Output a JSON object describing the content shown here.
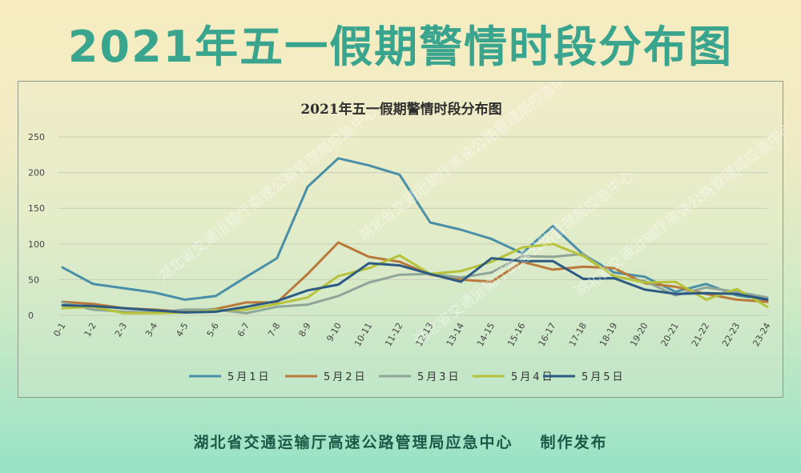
{
  "page": {
    "title": "2021年五一假期警情时段分布图",
    "footer_org": "湖北省交通运输厅高速公路管理局应急中心",
    "footer_action": "制作发布",
    "watermark": "湖北省交通运输厅高速公路管理局应急中心"
  },
  "colors": {
    "title": "#3aa58e",
    "footer": "#1c5a48"
  },
  "chart_data": {
    "type": "line",
    "title": "2021年五一假期警情时段分布图",
    "xlabel": "",
    "ylabel": "",
    "ylim": [
      0,
      250
    ],
    "yticks": [
      0,
      50,
      100,
      150,
      200,
      250
    ],
    "grid": true,
    "legend_position": "bottom",
    "categories": [
      "0-1",
      "1-2",
      "2-3",
      "3-4",
      "4-5",
      "5-6",
      "6-7",
      "7-8",
      "8-9",
      "9-10",
      "10-11",
      "11-12",
      "12-13",
      "13-14",
      "14-15",
      "15-16",
      "16-17",
      "17-18",
      "18-19",
      "19-20",
      "20-21",
      "21-22",
      "22-23",
      "23-24"
    ],
    "series": [
      {
        "name": "5月1日",
        "color": "#4a8fa8",
        "values": [
          67,
          44,
          38,
          32,
          22,
          27,
          54,
          80,
          180,
          220,
          210,
          197,
          130,
          120,
          107,
          87,
          125,
          85,
          60,
          54,
          33,
          44,
          28,
          22
        ]
      },
      {
        "name": "5月2日",
        "color": "#b9793a",
        "values": [
          19,
          16,
          10,
          8,
          5,
          9,
          18,
          18,
          58,
          102,
          82,
          75,
          57,
          50,
          47,
          75,
          64,
          68,
          66,
          45,
          40,
          30,
          22,
          19
        ]
      },
      {
        "name": "5月3日",
        "color": "#8fa598",
        "values": [
          18,
          8,
          5,
          4,
          8,
          8,
          3,
          12,
          15,
          27,
          46,
          57,
          58,
          53,
          60,
          83,
          82,
          86,
          54,
          48,
          28,
          39,
          33,
          25
        ]
      },
      {
        "name": "5月4日",
        "color": "#b5c23a",
        "values": [
          10,
          12,
          3,
          3,
          4,
          7,
          8,
          16,
          25,
          55,
          66,
          84,
          58,
          62,
          75,
          95,
          100,
          83,
          55,
          46,
          47,
          22,
          37,
          12
        ]
      },
      {
        "name": "5月5日",
        "color": "#2d5a82",
        "values": [
          14,
          13,
          10,
          7,
          4,
          5,
          12,
          20,
          35,
          43,
          73,
          70,
          58,
          47,
          80,
          76,
          76,
          51,
          52,
          36,
          30,
          31,
          30,
          22
        ]
      }
    ]
  }
}
